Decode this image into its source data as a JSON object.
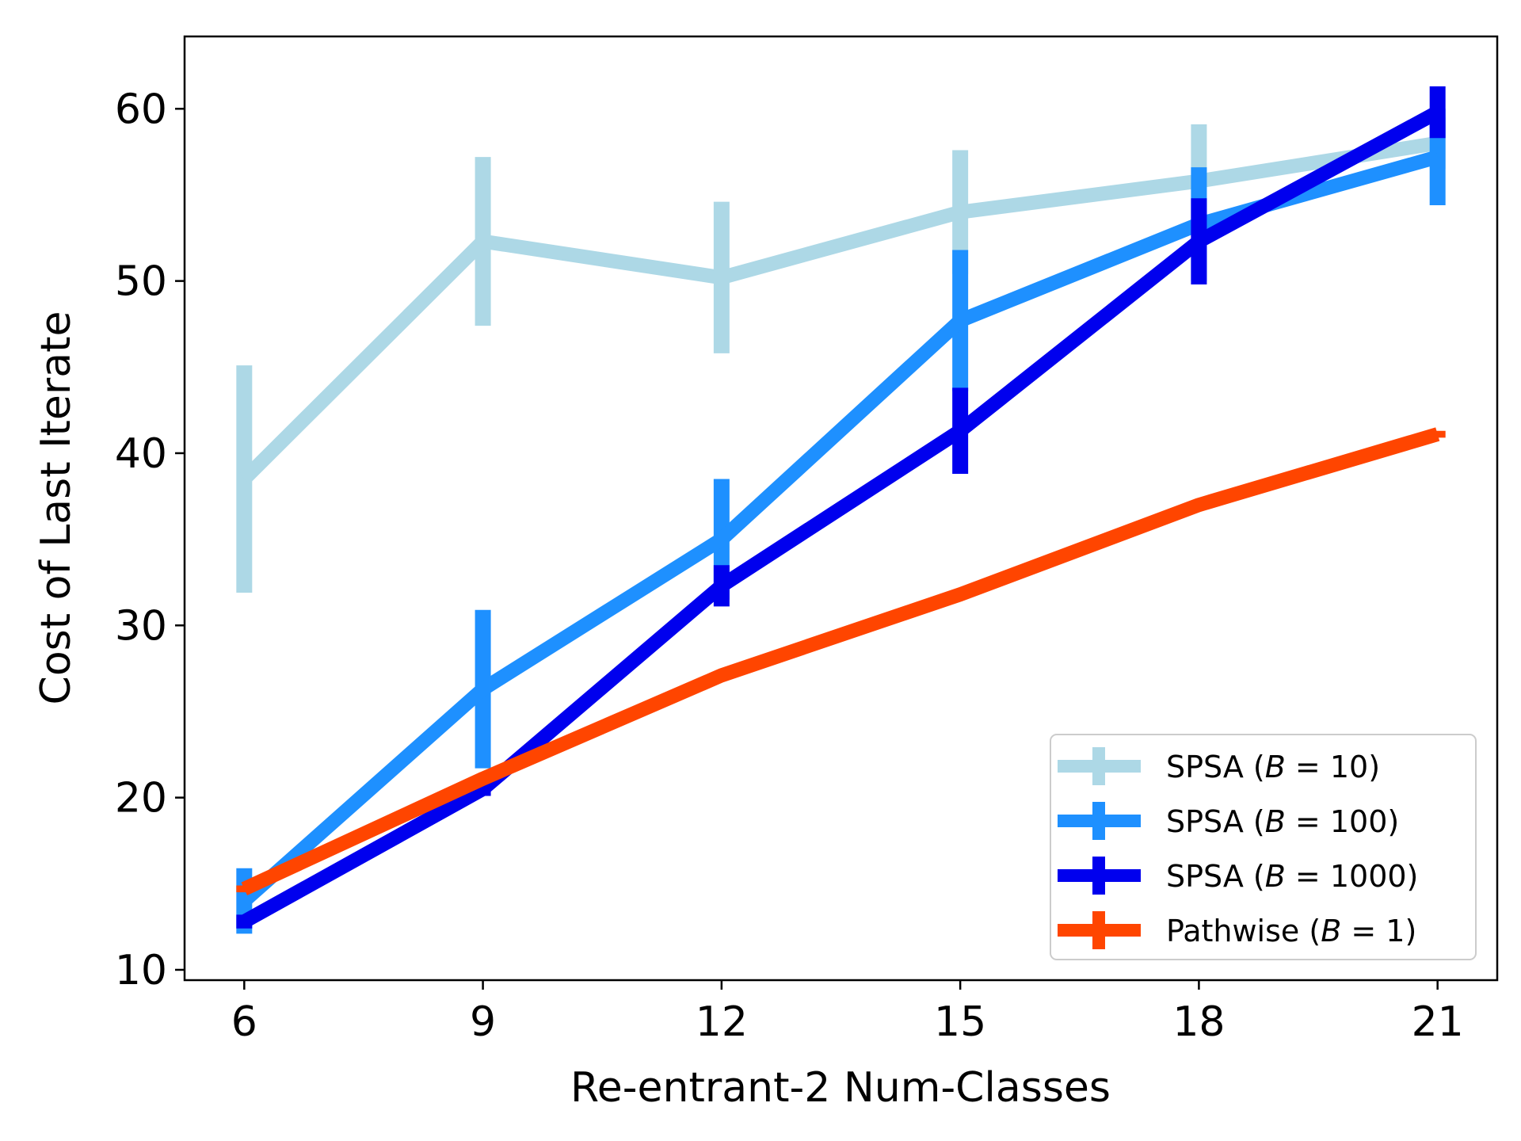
{
  "chart_data": {
    "type": "line",
    "title": "",
    "xlabel": "Re-entrant-2 Num-Classes",
    "ylabel": "Cost of Last Iterate",
    "x": [
      6,
      9,
      12,
      15,
      18,
      21
    ],
    "xticks": [
      "6",
      "9",
      "12",
      "15",
      "18",
      "21"
    ],
    "yticks": [
      "10",
      "20",
      "30",
      "40",
      "50",
      "60"
    ],
    "ytick_values": [
      10,
      20,
      30,
      40,
      50,
      60
    ],
    "xlim": [
      5.25,
      21.75
    ],
    "ylim": [
      9.4,
      64.2
    ],
    "grid": false,
    "legend_position": "lower-right",
    "series": [
      {
        "name": "SPSA (B = 10)",
        "legend_prefix": "SPSA (",
        "legend_var": "B",
        "legend_value": " = 10)",
        "color": "#add8e6",
        "values": [
          38.5,
          52.3,
          50.2,
          54.0,
          55.8,
          58.0
        ],
        "errors": [
          6.6,
          4.9,
          4.4,
          3.6,
          3.3,
          1.5
        ]
      },
      {
        "name": "SPSA (B = 100)",
        "legend_prefix": "SPSA (",
        "legend_var": "B",
        "legend_value": " = 100)",
        "color": "#1e90ff",
        "values": [
          14.0,
          26.3,
          35.0,
          47.7,
          53.3,
          57.2
        ],
        "errors": [
          1.9,
          4.6,
          3.5,
          4.1,
          3.3,
          2.8
        ]
      },
      {
        "name": "SPSA (B = 1000)",
        "legend_prefix": "SPSA (",
        "legend_var": "B",
        "legend_value": " = 1000)",
        "color": "#0000ee",
        "values": [
          12.8,
          20.5,
          32.3,
          41.3,
          52.3,
          59.8
        ],
        "errors": [
          0.4,
          0.4,
          1.2,
          2.5,
          2.5,
          1.5
        ]
      },
      {
        "name": "Pathwise (B = 1)",
        "legend_prefix": "Pathwise (",
        "legend_var": "B",
        "legend_value": " = 1)",
        "color": "#ff4500",
        "values": [
          14.7,
          21.1,
          27.1,
          31.8,
          37.0,
          41.1
        ],
        "errors": [
          0.2,
          0.2,
          0.2,
          0.2,
          0.2,
          0.2
        ]
      }
    ]
  }
}
